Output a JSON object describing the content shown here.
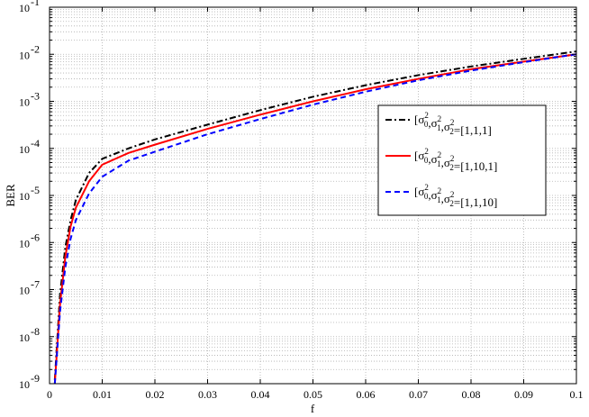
{
  "chart_data": {
    "type": "line",
    "title": "",
    "xlabel": "f",
    "ylabel": "BER",
    "xlim": [
      0,
      0.1
    ],
    "ylim": [
      1e-09,
      0.1
    ],
    "yscale": "log",
    "grid": true,
    "legend_position": "right",
    "x_ticks": [
      0,
      0.01,
      0.02,
      0.03,
      0.04,
      0.05,
      0.06,
      0.07,
      0.08,
      0.09,
      0.1
    ],
    "x_tick_labels": [
      "0",
      "0.01",
      "0.02",
      "0.03",
      "0.04",
      "0.05",
      "0.06",
      "0.07",
      "0.08",
      "0.09",
      "0.1"
    ],
    "y_ticks": [
      1e-09,
      1e-08,
      1e-07,
      1e-06,
      1e-05,
      0.0001,
      0.001,
      0.01,
      0.1
    ],
    "y_tick_labels": [
      {
        "base": "10",
        "exp": "-9"
      },
      {
        "base": "10",
        "exp": "-8"
      },
      {
        "base": "10",
        "exp": "-7"
      },
      {
        "base": "10",
        "exp": "-6"
      },
      {
        "base": "10",
        "exp": "-5"
      },
      {
        "base": "10",
        "exp": "-4"
      },
      {
        "base": "10",
        "exp": "-3"
      },
      {
        "base": "10",
        "exp": "-2"
      },
      {
        "base": "10",
        "exp": "-1"
      }
    ],
    "x": [
      0.001,
      0.002,
      0.003,
      0.004,
      0.005,
      0.0075,
      0.01,
      0.015,
      0.02,
      0.03,
      0.04,
      0.05,
      0.06,
      0.07,
      0.08,
      0.09,
      0.1
    ],
    "series": [
      {
        "label": {
          "open": "[",
          "s": "σ",
          "sub": [
            "0",
            "1",
            "2"
          ],
          "sup": "2",
          "value": "=[1,1,1]"
        },
        "color": "#000000",
        "dash": "dashdot",
        "values": [
          1.2e-09,
          8e-08,
          8e-07,
          3e-06,
          8e-06,
          3e-05,
          6e-05,
          0.0001,
          0.000155,
          0.00032,
          0.00065,
          0.00125,
          0.0022,
          0.0036,
          0.0055,
          0.008,
          0.0115
        ]
      },
      {
        "label": {
          "open": "[",
          "s": "σ",
          "sub": [
            "0",
            "1",
            "2"
          ],
          "sup": "2",
          "value": "=[1,10,1]"
        },
        "color": "#ff0000",
        "dash": "solid",
        "values": [
          1e-09,
          5e-08,
          5e-07,
          2.2e-06,
          5.5e-06,
          2e-05,
          4.5e-05,
          8e-05,
          0.00012,
          0.00026,
          0.00052,
          0.001,
          0.0018,
          0.003,
          0.0048,
          0.007,
          0.01
        ]
      },
      {
        "label": {
          "open": "[",
          "s": "σ",
          "sub": [
            "0",
            "1",
            "2"
          ],
          "sup": "2",
          "value": "=[1,1,10]"
        },
        "color": "#0000ff",
        "dash": "dashed",
        "values": [
          9e-10,
          3.5e-08,
          3e-07,
          1.2e-06,
          3e-06,
          1.1e-05,
          2.5e-05,
          5.5e-05,
          8.5e-05,
          0.0002,
          0.00042,
          0.00085,
          0.0016,
          0.0028,
          0.0045,
          0.0068,
          0.01
        ]
      }
    ]
  }
}
